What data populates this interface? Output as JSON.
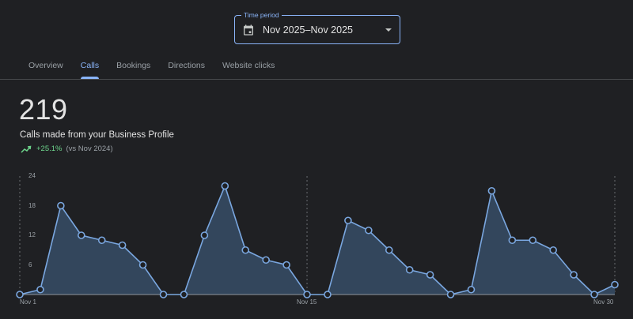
{
  "time_period": {
    "legend": "Time period",
    "value": "Nov 2025–Nov 2025",
    "icon": "calendar-icon"
  },
  "tabs": [
    {
      "label": "Overview",
      "active": false
    },
    {
      "label": "Calls",
      "active": true
    },
    {
      "label": "Bookings",
      "active": false
    },
    {
      "label": "Directions",
      "active": false
    },
    {
      "label": "Website clicks",
      "active": false
    }
  ],
  "metric": {
    "value": "219",
    "label": "Calls made from your Business Profile",
    "trend_icon": "trending-up-icon",
    "change": "+25.1%",
    "comparison": "(vs Nov 2024)"
  },
  "colors": {
    "accent": "#8ab4f8",
    "positive": "#6dd58c",
    "line": "#7aa7e0",
    "area": "#33465c",
    "background": "#1f2023"
  },
  "chart_data": {
    "type": "area",
    "title": "Calls made from your Business Profile",
    "xlabel": "",
    "ylabel": "",
    "ylim": [
      0,
      24
    ],
    "yticks": [
      6,
      12,
      18,
      24
    ],
    "xtick_labels": [
      "Nov 1",
      "Nov 15",
      "Nov 30"
    ],
    "grid": false,
    "markers": true,
    "x": [
      "Nov 1",
      "Nov 2",
      "Nov 3",
      "Nov 4",
      "Nov 5",
      "Nov 6",
      "Nov 7",
      "Nov 8",
      "Nov 9",
      "Nov 10",
      "Nov 11",
      "Nov 12",
      "Nov 13",
      "Nov 14",
      "Nov 15",
      "Nov 16",
      "Nov 17",
      "Nov 18",
      "Nov 19",
      "Nov 20",
      "Nov 21",
      "Nov 22",
      "Nov 23",
      "Nov 24",
      "Nov 25",
      "Nov 26",
      "Nov 27",
      "Nov 28",
      "Nov 29",
      "Nov 30"
    ],
    "series": [
      {
        "name": "Calls",
        "values": [
          0,
          1,
          18,
          12,
          11,
          10,
          6,
          0,
          0,
          12,
          22,
          9,
          7,
          6,
          0,
          0,
          15,
          13,
          9,
          5,
          4,
          0,
          1,
          21,
          11,
          11,
          9,
          4,
          0,
          2
        ]
      }
    ]
  }
}
